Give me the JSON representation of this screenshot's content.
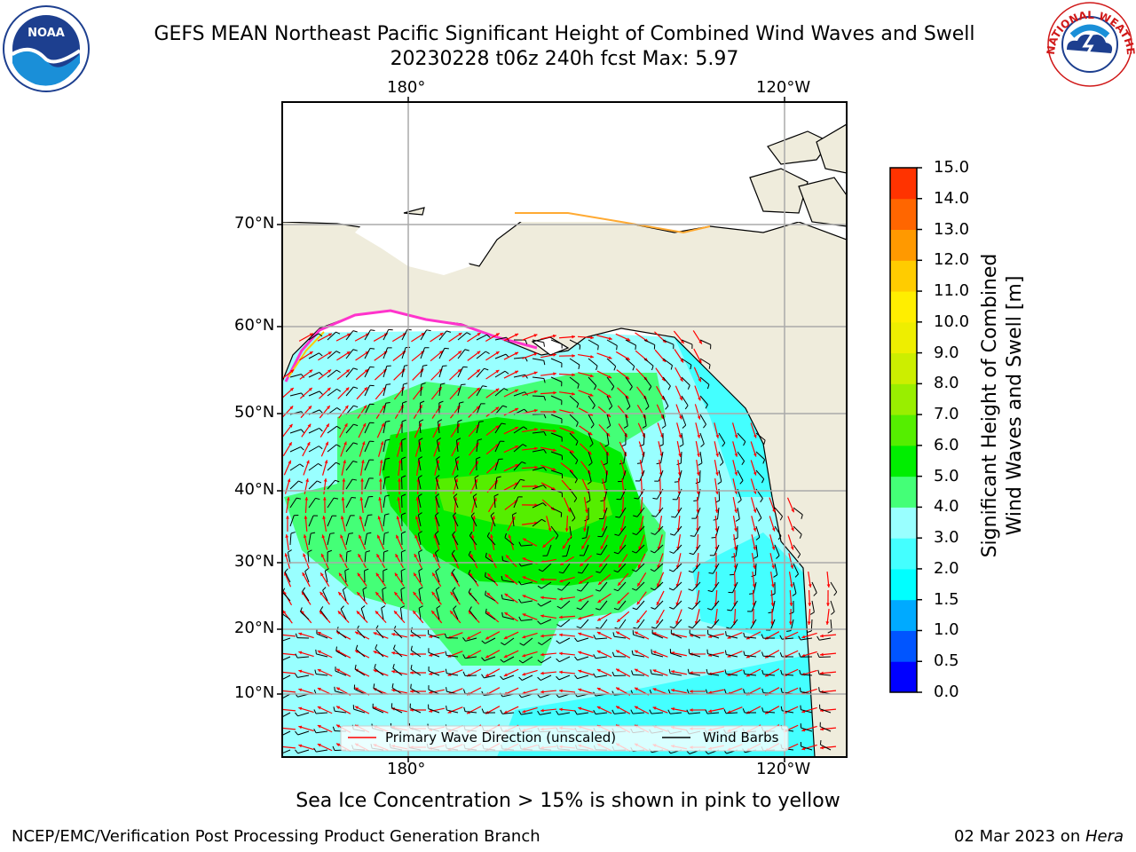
{
  "header": {
    "title_line1": "GEFS MEAN Northeast Pacific Significant Height of Combined Wind Waves and Swell",
    "title_line2": "20230228 t06z 240h fcst   Max: 5.97"
  },
  "logos": {
    "left": "NOAA",
    "right": "NATIONAL WEATHER SERVICE"
  },
  "map": {
    "lon_labels_top": [
      "180°",
      "120°W"
    ],
    "lon_labels_bottom": [
      "180°",
      "120°W"
    ],
    "lat_labels": [
      "70°N",
      "60°N",
      "50°N",
      "40°N",
      "30°N",
      "20°N",
      "10°N"
    ],
    "land_color": "#efecdc",
    "ocean_color": "#ffffff"
  },
  "legend": {
    "wave_label": "Primary Wave Direction (unscaled)",
    "wind_label": "Wind Barbs",
    "wave_color": "#ff0000",
    "wind_color": "#000000"
  },
  "colorbar": {
    "label_line1": "Significant Height of Combined",
    "label_line2": "Wind Waves and Swell [m]",
    "ticks": [
      "0.0",
      "0.5",
      "1.0",
      "1.5",
      "2.0",
      "3.0",
      "4.0",
      "5.0",
      "6.0",
      "7.0",
      "8.0",
      "9.0",
      "10.0",
      "11.0",
      "12.0",
      "13.0",
      "14.0",
      "15.0"
    ],
    "colors": [
      "#0000ff",
      "#0055ff",
      "#00aaff",
      "#00ffff",
      "#44ffff",
      "#99ffff",
      "#44ff77",
      "#00ee00",
      "#55ee00",
      "#99ee00",
      "#ccee00",
      "#eeee00",
      "#ffee00",
      "#ffcc00",
      "#ff9900",
      "#ff6600",
      "#ff3300",
      "#ff0000"
    ]
  },
  "ice_note": "Sea Ice Concentration > 15% is shown in pink to yellow",
  "footer": {
    "left": "NCEP/EMC/Verification Post Processing Product Generation Branch",
    "date": "02 Mar 2023 on ",
    "machine": "Hera"
  },
  "chart_data": {
    "type": "heatmap",
    "variable": "Significant Height of Combined Wind Waves and Swell",
    "units": "m",
    "run": "20230228 t06z",
    "forecast_hour": 240,
    "max": 5.97,
    "scale_range": [
      0.0,
      15.0
    ],
    "levels": [
      0.0,
      0.5,
      1.0,
      1.5,
      2.0,
      3.0,
      4.0,
      5.0,
      6.0,
      7.0,
      8.0,
      9.0,
      10.0,
      11.0,
      12.0,
      13.0,
      14.0,
      15.0
    ],
    "regions": [
      {
        "area": "central North Pacific 25N-45N, 170E-140W",
        "height_range_m": [
          4.0,
          6.0
        ]
      },
      {
        "area": "surrounding belt 18N-55N",
        "height_range_m": [
          3.0,
          4.0
        ]
      },
      {
        "area": "Gulf of Alaska / Bering Sea / tropics",
        "height_range_m": [
          2.0,
          3.0
        ]
      },
      {
        "area": "near coast of North America and eastern tropics",
        "height_range_m": [
          1.5,
          2.0
        ]
      }
    ]
  }
}
